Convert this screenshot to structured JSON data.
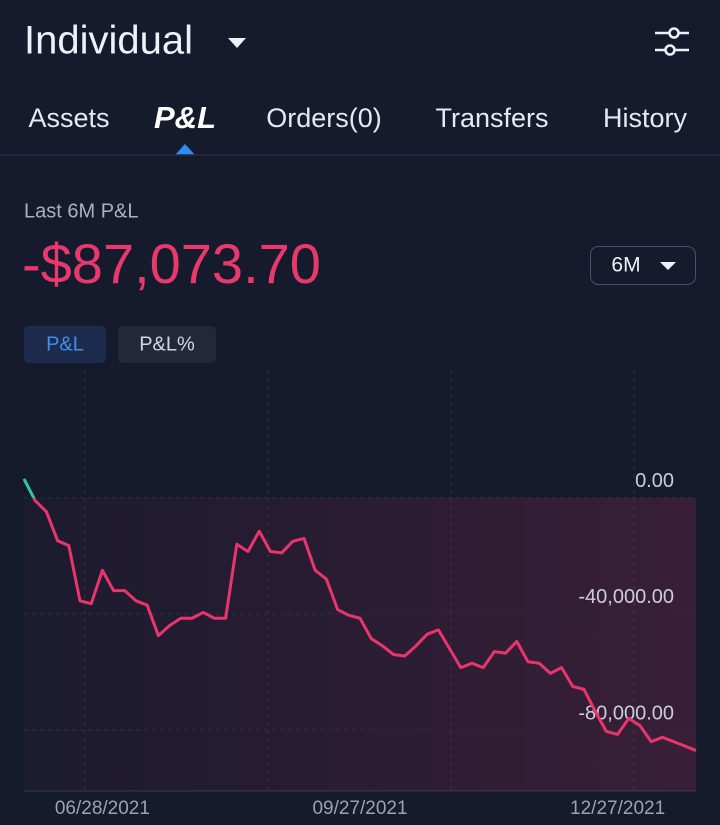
{
  "header": {
    "title": "Individual"
  },
  "tabs": [
    "Assets",
    "P&L",
    "Orders(0)",
    "Transfers",
    "History"
  ],
  "summary": {
    "label": "Last 6M P&L",
    "value": "-$87,073.70",
    "period": "6M"
  },
  "toggles": [
    "P&L",
    "P&L%"
  ],
  "chart_data": {
    "type": "line",
    "categories": [
      null,
      null,
      null,
      null,
      null,
      null,
      null,
      "06/28/2021",
      null,
      null,
      null,
      null,
      null,
      null,
      null,
      null,
      null,
      null,
      null,
      null,
      null,
      null,
      null,
      null,
      null,
      null,
      null,
      null,
      null,
      null,
      "09/27/2021",
      null,
      null,
      null,
      null,
      null,
      null,
      null,
      null,
      null,
      null,
      null,
      null,
      null,
      null,
      null,
      null,
      null,
      null,
      null,
      null,
      null,
      null,
      "12/27/2021",
      null,
      null,
      null,
      null,
      null,
      null,
      null
    ],
    "series": [
      {
        "color": "#e8356b",
        "values": [
          6500,
          -1000,
          -4800,
          -14800,
          -16500,
          -35500,
          -36500,
          -25000,
          -32000,
          -32000,
          -35500,
          -37000,
          -47500,
          -44000,
          -41500,
          -41500,
          -39500,
          -41500,
          -41500,
          -16000,
          -18500,
          -11500,
          -18500,
          -19000,
          -15000,
          -14000,
          -25000,
          -28000,
          -38500,
          -40500,
          -41500,
          -48500,
          -51000,
          -54000,
          -54500,
          -51000,
          -47000,
          -45500,
          -52000,
          -58500,
          -57000,
          -58500,
          -53000,
          -53500,
          -49500,
          -56500,
          -57000,
          -60500,
          -58500,
          -65000,
          -66000,
          -73500,
          -80500,
          -81500,
          -76000,
          -78500,
          -84000,
          -82500,
          -84000,
          -85500,
          -87074
        ]
      }
    ],
    "positive_color": "#2fc79d",
    "ylim": [
      -101000,
      44000
    ],
    "yticks": [
      {
        "value": 0,
        "label": "0.00"
      },
      {
        "value": -40000,
        "label": "-40,000.00"
      },
      {
        "value": -80000,
        "label": "-80,000.00"
      }
    ],
    "grid": true
  }
}
